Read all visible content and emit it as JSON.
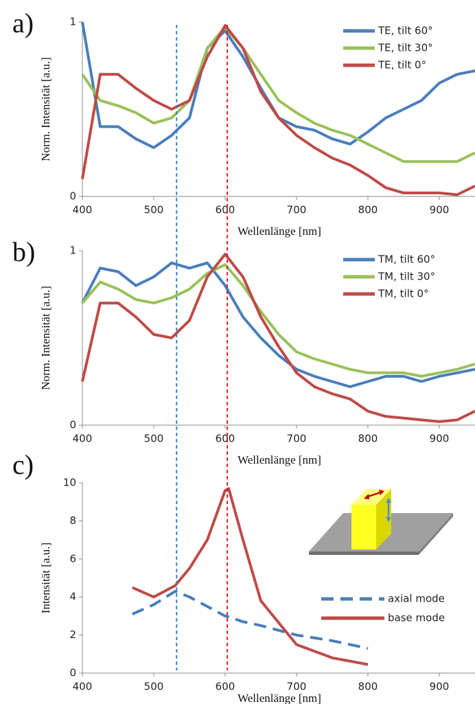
{
  "chart_data": [
    {
      "type": "line",
      "label": "a)",
      "y_label": "Norm. Intensität [a.u.]",
      "x_label": "Wellenlänge [nm]",
      "x": [
        400,
        425,
        450,
        475,
        500,
        525,
        550,
        575,
        600,
        625,
        650,
        675,
        700,
        725,
        750,
        775,
        800,
        825,
        850,
        875,
        900,
        925,
        950
      ],
      "series": [
        {
          "name": "TE, tilt 60°",
          "color": "#4a7ebb",
          "values": [
            1.0,
            0.4,
            0.4,
            0.33,
            0.28,
            0.35,
            0.45,
            0.85,
            0.95,
            0.8,
            0.62,
            0.45,
            0.4,
            0.38,
            0.33,
            0.3,
            0.37,
            0.45,
            0.5,
            0.55,
            0.65,
            0.7,
            0.72
          ]
        },
        {
          "name": "TE, tilt 30°",
          "color": "#98c15a",
          "values": [
            0.7,
            0.55,
            0.52,
            0.48,
            0.42,
            0.45,
            0.55,
            0.85,
            0.97,
            0.85,
            0.7,
            0.55,
            0.48,
            0.42,
            0.38,
            0.35,
            0.3,
            0.25,
            0.2,
            0.2,
            0.2,
            0.2,
            0.25
          ]
        },
        {
          "name": "TE, tilt 0°",
          "color": "#be4b48",
          "values": [
            0.1,
            0.7,
            0.7,
            0.62,
            0.55,
            0.5,
            0.55,
            0.8,
            0.98,
            0.85,
            0.6,
            0.45,
            0.35,
            0.28,
            0.22,
            0.18,
            0.12,
            0.05,
            0.02,
            0.02,
            0.02,
            0.01,
            0.06
          ]
        }
      ],
      "xlim": [
        400,
        950
      ],
      "xticks": [
        400,
        500,
        600,
        700,
        800,
        900
      ],
      "ylim": [
        0,
        1
      ],
      "yticks": [
        0,
        1
      ],
      "legend": "upper right"
    },
    {
      "type": "line",
      "label": "b)",
      "y_label": "Norm. Intensität [a.u.]",
      "x_label": "Wellenlänge [nm]",
      "x": [
        400,
        425,
        450,
        475,
        500,
        525,
        550,
        575,
        600,
        625,
        650,
        675,
        700,
        725,
        750,
        775,
        800,
        825,
        850,
        875,
        900,
        925,
        950
      ],
      "series": [
        {
          "name": "TM, tilt 60°",
          "color": "#4a7ebb",
          "values": [
            0.7,
            0.9,
            0.88,
            0.8,
            0.85,
            0.93,
            0.9,
            0.93,
            0.8,
            0.62,
            0.5,
            0.4,
            0.32,
            0.28,
            0.25,
            0.22,
            0.25,
            0.28,
            0.28,
            0.25,
            0.28,
            0.3,
            0.32
          ]
        },
        {
          "name": "TM, tilt 30°",
          "color": "#98c15a",
          "values": [
            0.7,
            0.82,
            0.78,
            0.72,
            0.7,
            0.73,
            0.78,
            0.87,
            0.92,
            0.8,
            0.65,
            0.52,
            0.42,
            0.38,
            0.35,
            0.32,
            0.3,
            0.3,
            0.3,
            0.28,
            0.3,
            0.32,
            0.35
          ]
        },
        {
          "name": "TM, tilt 0°",
          "color": "#be4b48",
          "values": [
            0.25,
            0.7,
            0.7,
            0.62,
            0.52,
            0.5,
            0.6,
            0.85,
            0.98,
            0.85,
            0.62,
            0.45,
            0.3,
            0.22,
            0.18,
            0.15,
            0.08,
            0.05,
            0.04,
            0.03,
            0.02,
            0.03,
            0.08
          ]
        }
      ],
      "xlim": [
        400,
        950
      ],
      "xticks": [
        400,
        500,
        600,
        700,
        800,
        900
      ],
      "ylim": [
        0,
        1
      ],
      "yticks": [
        0,
        1
      ],
      "legend": "upper right"
    },
    {
      "type": "line",
      "label": "c)",
      "y_label": "Intensität [a.u.]",
      "x_label": "Wellenlänge [nm]",
      "x": [
        470,
        500,
        530,
        550,
        575,
        600,
        605,
        625,
        650,
        700,
        750,
        800
      ],
      "series": [
        {
          "name": "axial mode",
          "color": "#4a7ebb",
          "style": "dashed",
          "values": [
            3.1,
            3.6,
            4.3,
            4.0,
            3.5,
            3.0,
            2.95,
            2.7,
            2.5,
            2.0,
            1.7,
            1.3
          ]
        },
        {
          "name": "base mode",
          "color": "#be4b48",
          "style": "solid",
          "values": [
            4.5,
            4.0,
            4.6,
            5.5,
            7.0,
            9.6,
            9.7,
            7.0,
            3.8,
            1.5,
            0.8,
            0.45
          ]
        }
      ],
      "xlim": [
        400,
        950
      ],
      "xticks": [
        400,
        500,
        600,
        700,
        800,
        900
      ],
      "ylim": [
        0,
        10
      ],
      "yticks": [
        0,
        2,
        4,
        6,
        8,
        10
      ],
      "legend": "lower right"
    }
  ],
  "reference_lines": [
    {
      "value": 532,
      "color": "#2e86c8"
    },
    {
      "value": 603,
      "color": "#e02020"
    }
  ]
}
